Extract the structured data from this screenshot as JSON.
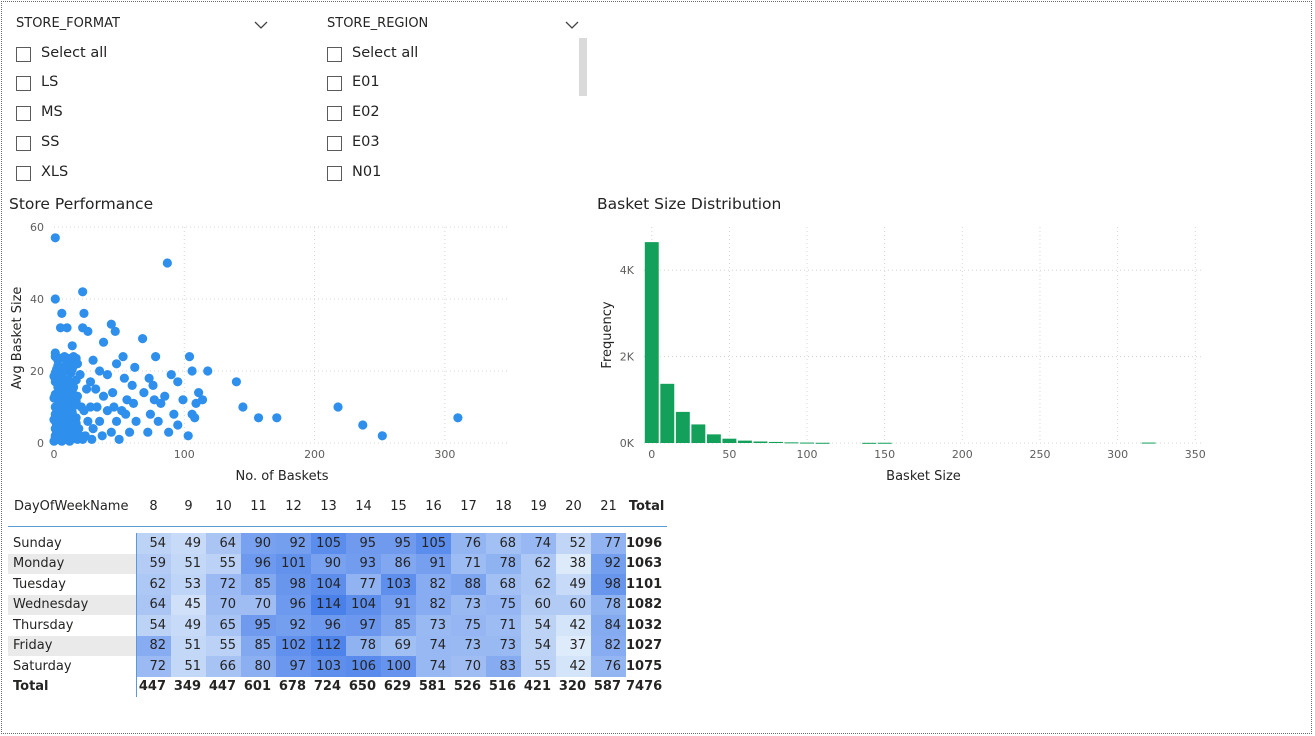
{
  "store_format": {
    "title": "STORE_FORMAT",
    "items": [
      "Select all",
      "LS",
      "MS",
      "SS",
      "XLS"
    ]
  },
  "store_region": {
    "title": "STORE_REGION",
    "items": [
      "Select all",
      "E01",
      "E02",
      "E03",
      "N01"
    ]
  },
  "scatter": {
    "title": "Store Performance",
    "xlabel": "No. of Baskets",
    "ylabel": "Avg Basket Size",
    "xticks": [
      "0",
      "100",
      "200",
      "300"
    ],
    "yticks": [
      "0",
      "20",
      "40",
      "60"
    ],
    "color": "#2f8fec"
  },
  "histogram": {
    "title": "Basket Size Distribution",
    "xlabel": "Basket Size",
    "ylabel": "Frequency",
    "xticks": [
      "0",
      "50",
      "100",
      "150",
      "200",
      "250",
      "300",
      "350"
    ],
    "yticks": [
      "0K",
      "2K",
      "4K"
    ],
    "color": "#13a05a"
  },
  "chart_data": [
    {
      "type": "scatter",
      "title": "Store Performance",
      "xlabel": "No. of Baskets",
      "ylabel": "Avg Basket Size",
      "xlim": [
        0,
        350
      ],
      "ylim": [
        0,
        60
      ],
      "points": [
        [
          1,
          57
        ],
        [
          87,
          50
        ],
        [
          1,
          40
        ],
        [
          22,
          42
        ],
        [
          6,
          36
        ],
        [
          23,
          36
        ],
        [
          5,
          32
        ],
        [
          10,
          32
        ],
        [
          44,
          33
        ],
        [
          22,
          32
        ],
        [
          26,
          31
        ],
        [
          47,
          31
        ],
        [
          68,
          29
        ],
        [
          38,
          28
        ],
        [
          14,
          27
        ],
        [
          1,
          25
        ],
        [
          1,
          24
        ],
        [
          8,
          24
        ],
        [
          3,
          23
        ],
        [
          15,
          24
        ],
        [
          30,
          23
        ],
        [
          18,
          22
        ],
        [
          53,
          24
        ],
        [
          78,
          24
        ],
        [
          104,
          24
        ],
        [
          118,
          20
        ],
        [
          106,
          20
        ],
        [
          35,
          20
        ],
        [
          48,
          22
        ],
        [
          62,
          21
        ],
        [
          4,
          20
        ],
        [
          1,
          19
        ],
        [
          10,
          20
        ],
        [
          20,
          19
        ],
        [
          41,
          19
        ],
        [
          28,
          17
        ],
        [
          54,
          18
        ],
        [
          73,
          18
        ],
        [
          90,
          19
        ],
        [
          95,
          17
        ],
        [
          140,
          17
        ],
        [
          76,
          16
        ],
        [
          60,
          16
        ],
        [
          1,
          17
        ],
        [
          6,
          16
        ],
        [
          13,
          17
        ],
        [
          25,
          15
        ],
        [
          32,
          15
        ],
        [
          45,
          14
        ],
        [
          69,
          14
        ],
        [
          85,
          13
        ],
        [
          111,
          14
        ],
        [
          3,
          14
        ],
        [
          9,
          13
        ],
        [
          18,
          13
        ],
        [
          38,
          13
        ],
        [
          56,
          12
        ],
        [
          77,
          12
        ],
        [
          99,
          12
        ],
        [
          114,
          12
        ],
        [
          1,
          13
        ],
        [
          4,
          12
        ],
        [
          15,
          11
        ],
        [
          28,
          10
        ],
        [
          46,
          10
        ],
        [
          61,
          11
        ],
        [
          7,
          11
        ],
        [
          21,
          10
        ],
        [
          33,
          10
        ],
        [
          52,
          9
        ],
        [
          82,
          11
        ],
        [
          109,
          11
        ],
        [
          1,
          10
        ],
        [
          3,
          9
        ],
        [
          12,
          9
        ],
        [
          23,
          9
        ],
        [
          41,
          9
        ],
        [
          55,
          8
        ],
        [
          74,
          8
        ],
        [
          92,
          8
        ],
        [
          106,
          8
        ],
        [
          145,
          10
        ],
        [
          157,
          7
        ],
        [
          171,
          7
        ],
        [
          218,
          10
        ],
        [
          1,
          8
        ],
        [
          5,
          7
        ],
        [
          9,
          7
        ],
        [
          17,
          7
        ],
        [
          26,
          6
        ],
        [
          35,
          6
        ],
        [
          48,
          6
        ],
        [
          63,
          6
        ],
        [
          80,
          6
        ],
        [
          95,
          5
        ],
        [
          108,
          7
        ],
        [
          237,
          5
        ],
        [
          310,
          7
        ],
        [
          1,
          6
        ],
        [
          2,
          5
        ],
        [
          4,
          5
        ],
        [
          7,
          5
        ],
        [
          11,
          5
        ],
        [
          19,
          4
        ],
        [
          30,
          4
        ],
        [
          44,
          3
        ],
        [
          58,
          3
        ],
        [
          72,
          3
        ],
        [
          88,
          3
        ],
        [
          103,
          2
        ],
        [
          252,
          2
        ],
        [
          1,
          4
        ],
        [
          2,
          3
        ],
        [
          3,
          3
        ],
        [
          5,
          3
        ],
        [
          6,
          2
        ],
        [
          8,
          2
        ],
        [
          10,
          2
        ],
        [
          14,
          2
        ],
        [
          16,
          3
        ],
        [
          24,
          2
        ],
        [
          37,
          2
        ],
        [
          50,
          1
        ],
        [
          1,
          2
        ],
        [
          2,
          1
        ],
        [
          3,
          1
        ],
        [
          4,
          1
        ],
        [
          5,
          1
        ],
        [
          7,
          1
        ],
        [
          9,
          1
        ],
        [
          11,
          1
        ],
        [
          13,
          1
        ],
        [
          18,
          1
        ],
        [
          22,
          1
        ],
        [
          29,
          1
        ],
        [
          1,
          1
        ],
        [
          2,
          2
        ],
        [
          3,
          2
        ],
        [
          6,
          3
        ],
        [
          12,
          3
        ],
        [
          20,
          2
        ]
      ]
    },
    {
      "type": "bar",
      "title": "Basket Size Distribution",
      "xlabel": "Basket Size",
      "ylabel": "Frequency",
      "xlim": [
        -5,
        355
      ],
      "ylim": [
        0,
        5000
      ],
      "bin_width": 10,
      "bins": [
        0,
        10,
        20,
        30,
        40,
        50,
        60,
        70,
        80,
        90,
        100,
        110,
        140,
        150,
        320
      ],
      "values": [
        4650,
        1370,
        720,
        430,
        200,
        100,
        55,
        35,
        25,
        15,
        10,
        5,
        4,
        6,
        10
      ]
    },
    {
      "type": "table",
      "row_header": "DayOfWeekName",
      "columns": [
        "8",
        "9",
        "10",
        "11",
        "12",
        "13",
        "14",
        "15",
        "16",
        "17",
        "18",
        "19",
        "20",
        "21"
      ],
      "total_label": "Total",
      "rows": [
        {
          "name": "Sunday",
          "values": [
            54,
            49,
            64,
            90,
            92,
            105,
            95,
            95,
            105,
            76,
            68,
            74,
            52,
            77
          ],
          "total": 1096
        },
        {
          "name": "Monday",
          "values": [
            59,
            51,
            55,
            96,
            101,
            90,
            93,
            86,
            91,
            71,
            78,
            62,
            38,
            92
          ],
          "total": 1063
        },
        {
          "name": "Tuesday",
          "values": [
            62,
            53,
            72,
            85,
            98,
            104,
            77,
            103,
            82,
            88,
            68,
            62,
            49,
            98
          ],
          "total": 1101
        },
        {
          "name": "Wednesday",
          "values": [
            64,
            45,
            70,
            70,
            96,
            114,
            104,
            91,
            82,
            73,
            75,
            60,
            60,
            78
          ],
          "total": 1082
        },
        {
          "name": "Thursday",
          "values": [
            54,
            49,
            65,
            95,
            92,
            96,
            97,
            85,
            73,
            75,
            71,
            54,
            42,
            84
          ],
          "total": 1032
        },
        {
          "name": "Friday",
          "values": [
            82,
            51,
            55,
            85,
            102,
            112,
            78,
            69,
            74,
            73,
            73,
            54,
            37,
            82
          ],
          "total": 1027
        },
        {
          "name": "Saturday",
          "values": [
            72,
            51,
            66,
            80,
            97,
            103,
            106,
            100,
            74,
            70,
            83,
            55,
            42,
            76
          ],
          "total": 1075
        }
      ],
      "column_totals": [
        447,
        349,
        447,
        601,
        678,
        724,
        650,
        629,
        581,
        526,
        516,
        421,
        320,
        587
      ],
      "grand_total": 7476
    }
  ]
}
